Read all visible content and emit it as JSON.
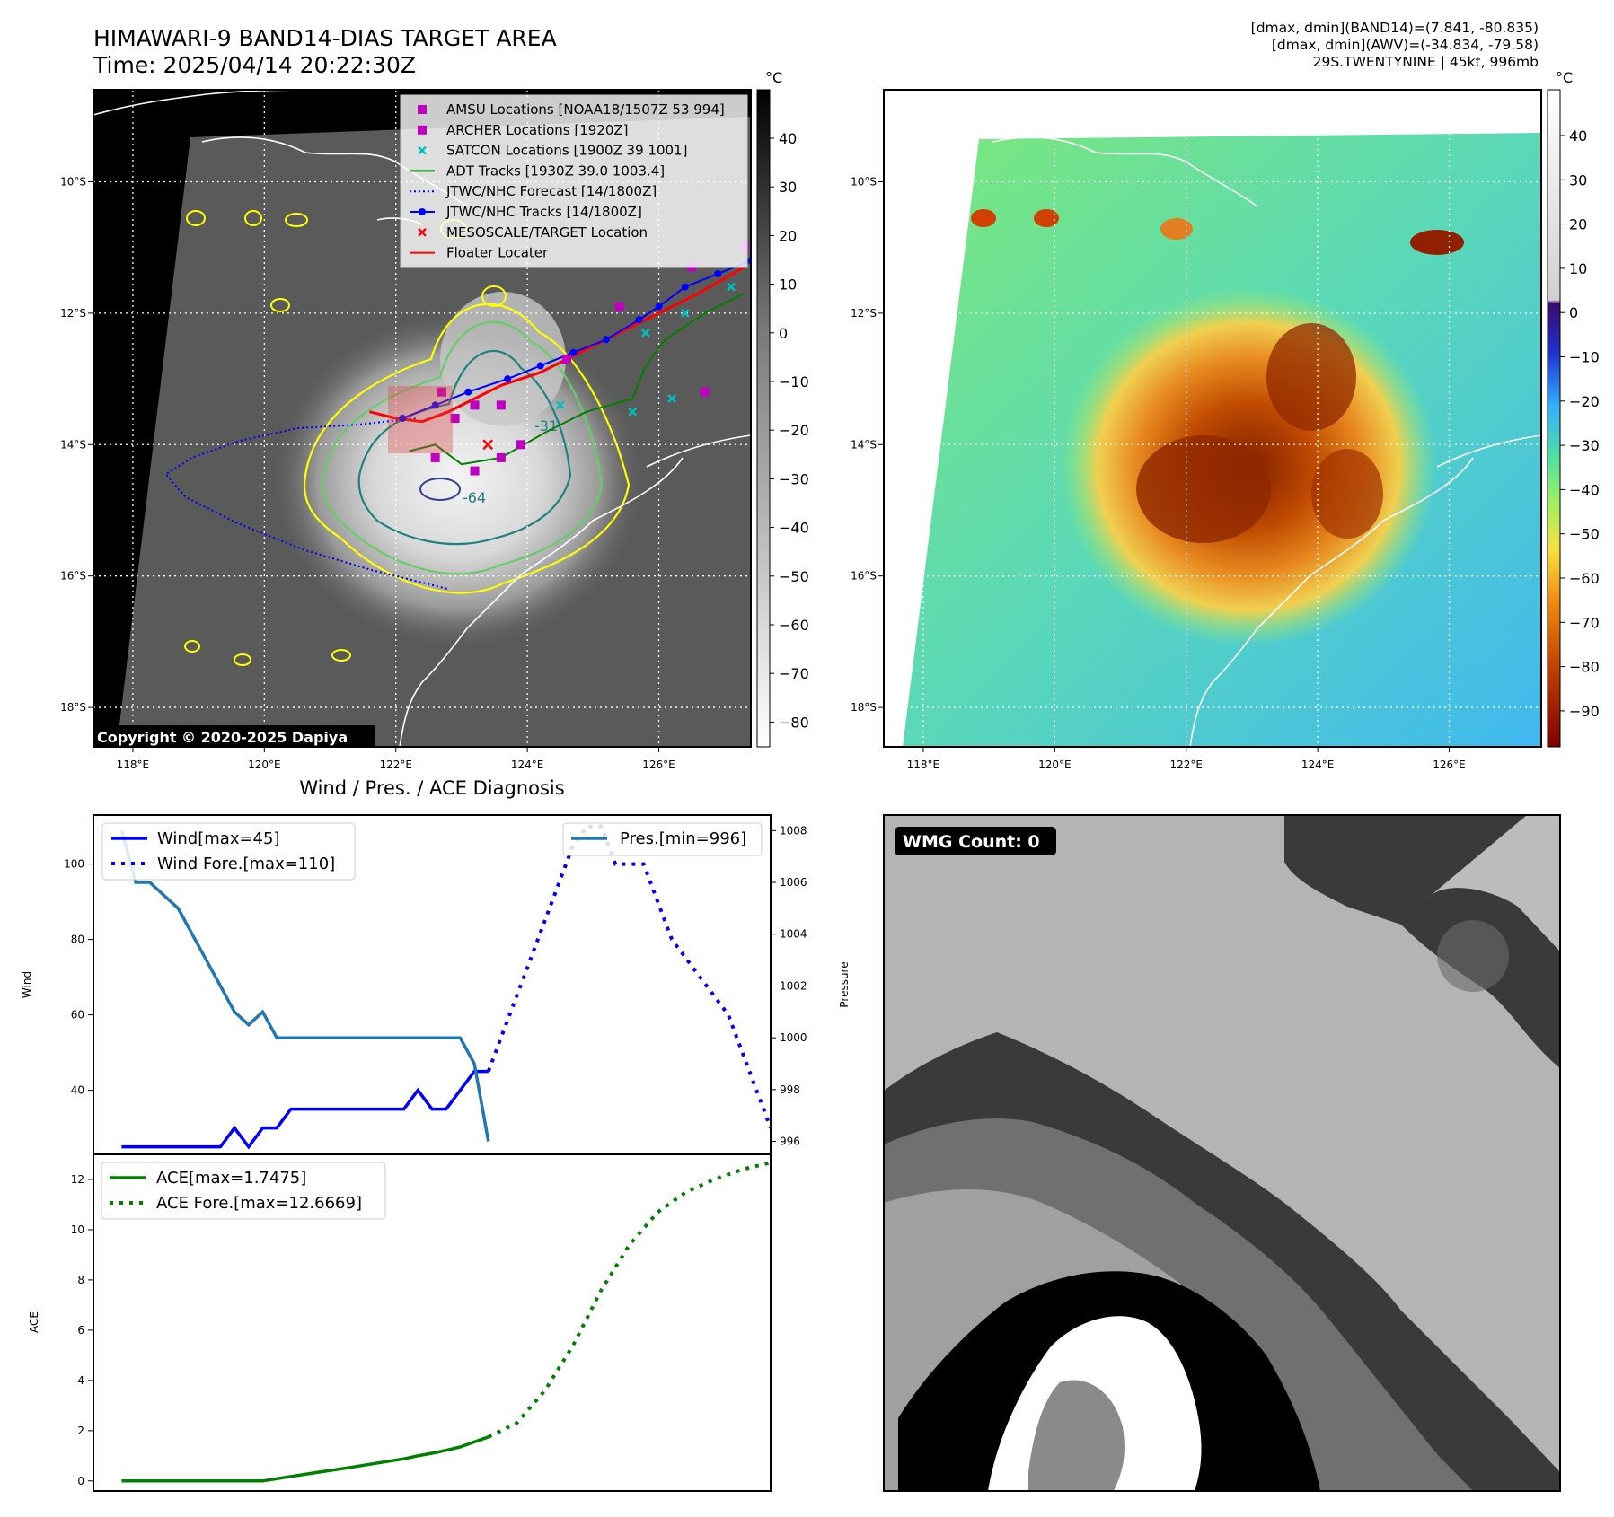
{
  "header": {
    "title_line1": "HIMAWARI-9 BAND14-DIAS TARGET AREA",
    "title_line2": "Time: 2025/04/14 20:22:30Z",
    "info_line1": "[dmax, dmin](BAND14)=(7.841, -80.835)",
    "info_line2": "[dmax, dmin](AWV)=(-34.834, -79.58)",
    "info_line3": "29S.TWENTYNINE | 45kt, 996mb"
  },
  "colors": {
    "wind": "#0000ff",
    "pressure": "#1f77b4",
    "ace": "#008000",
    "track_red": "#ff0000",
    "amsu": "#c000c0",
    "satcon": "#00c0c0",
    "contour_yellow": "#ffff00",
    "contour_green": "#66cc66",
    "contour_teal": "#208080"
  },
  "map_axes": {
    "lon_ticks": [
      "118°E",
      "120°E",
      "122°E",
      "124°E",
      "126°E"
    ],
    "lat_ticks": [
      "10°S",
      "12°S",
      "14°S",
      "16°S",
      "18°S"
    ],
    "lon_range": [
      117.4,
      127.4
    ],
    "lat_range": [
      -18.6,
      -8.6
    ]
  },
  "map_left": {
    "copyright": "Copyright © 2020-2025 Dapiya",
    "colorbar_unit": "°C",
    "colorbar_ticks": [
      "40",
      "30",
      "20",
      "10",
      "0",
      "−10",
      "−20",
      "−30",
      "−40",
      "−50",
      "−60",
      "−70",
      "−80"
    ],
    "contour_labels": [
      "-31",
      "-64"
    ],
    "legend": [
      {
        "label": "AMSU Locations [NOAA18/1507Z 53 994]",
        "marker": "square",
        "color": "#c000c0"
      },
      {
        "label": "ARCHER Locations [1920Z]",
        "marker": "square",
        "color": "#c000c0"
      },
      {
        "label": "SATCON Locations [1900Z 39 1001]",
        "marker": "x",
        "color": "#00c0c0"
      },
      {
        "label": "ADT Tracks [1930Z 39.0 1003.4]",
        "marker": "line",
        "color": "#008000"
      },
      {
        "label": "JTWC/NHC Forecast [14/1800Z]",
        "marker": "dotted",
        "color": "#0000ff"
      },
      {
        "label": "JTWC/NHC Tracks [14/1800Z]",
        "marker": "line-dot",
        "color": "#0000ff"
      },
      {
        "label": "MESOSCALE/TARGET Location",
        "marker": "x",
        "color": "#ff0000"
      },
      {
        "label": "Floater Locater",
        "marker": "line",
        "color": "#ff0000"
      }
    ],
    "tracks": {
      "jtwc_track": [
        [
          127.4,
          -11.2
        ],
        [
          126.9,
          -11.4
        ],
        [
          126.4,
          -11.6
        ],
        [
          126.0,
          -11.9
        ],
        [
          125.7,
          -12.1
        ],
        [
          125.2,
          -12.4
        ],
        [
          124.7,
          -12.6
        ],
        [
          124.2,
          -12.8
        ],
        [
          123.7,
          -13.0
        ],
        [
          123.1,
          -13.2
        ],
        [
          122.6,
          -13.4
        ],
        [
          122.1,
          -13.6
        ]
      ],
      "jtwc_forecast": [
        [
          122.3,
          -13.6
        ],
        [
          121.4,
          -13.7
        ],
        [
          120.5,
          -13.75
        ],
        [
          119.6,
          -13.95
        ],
        [
          118.9,
          -14.2
        ],
        [
          118.5,
          -14.45
        ],
        [
          118.8,
          -14.8
        ],
        [
          119.6,
          -15.2
        ],
        [
          120.6,
          -15.6
        ],
        [
          121.6,
          -15.9
        ],
        [
          122.4,
          -16.1
        ],
        [
          122.8,
          -16.2
        ]
      ],
      "floater": [
        [
          127.3,
          -11.3
        ],
        [
          126.6,
          -11.7
        ],
        [
          126.0,
          -12.0
        ],
        [
          125.4,
          -12.3
        ],
        [
          124.8,
          -12.6
        ],
        [
          124.2,
          -12.9
        ],
        [
          123.6,
          -13.1
        ],
        [
          123.2,
          -13.3
        ],
        [
          122.8,
          -13.5
        ],
        [
          122.4,
          -13.65
        ],
        [
          122.0,
          -13.6
        ],
        [
          121.6,
          -13.5
        ]
      ],
      "adt": [
        [
          127.3,
          -11.7
        ],
        [
          126.7,
          -12.0
        ],
        [
          126.1,
          -12.4
        ],
        [
          125.8,
          -12.8
        ],
        [
          125.6,
          -13.3
        ],
        [
          124.9,
          -13.5
        ],
        [
          124.3,
          -13.8
        ],
        [
          123.6,
          -14.2
        ],
        [
          123.0,
          -14.3
        ],
        [
          122.6,
          -14.0
        ],
        [
          122.2,
          -14.1
        ]
      ],
      "amsu": [
        [
          127.3,
          -11.0
        ],
        [
          126.5,
          -11.3
        ],
        [
          125.4,
          -11.9
        ],
        [
          124.6,
          -12.7
        ],
        [
          123.6,
          -13.4
        ],
        [
          123.2,
          -13.4
        ],
        [
          122.9,
          -13.6
        ],
        [
          122.7,
          -13.2
        ],
        [
          122.6,
          -14.2
        ],
        [
          123.2,
          -14.4
        ],
        [
          123.6,
          -14.2
        ],
        [
          123.9,
          -14.0
        ],
        [
          126.7,
          -13.2
        ]
      ],
      "satcon": [
        [
          127.1,
          -11.6
        ],
        [
          126.4,
          -12.0
        ],
        [
          125.8,
          -12.3
        ],
        [
          125.6,
          -13.5
        ],
        [
          126.2,
          -13.3
        ],
        [
          124.5,
          -13.4
        ]
      ],
      "target": [
        [
          123.4,
          -14.0
        ]
      ]
    }
  },
  "map_right": {
    "colorbar_unit": "°C",
    "colorbar_ticks": [
      "40",
      "30",
      "20",
      "10",
      "0",
      "−10",
      "−20",
      "−30",
      "−40",
      "−50",
      "−60",
      "−70",
      "−80",
      "−90"
    ]
  },
  "chart_data": [
    {
      "type": "line",
      "title": "Wind / Pres. / ACE Diagnosis",
      "ylabel": "Wind",
      "y2label": "Pressure",
      "ylim": [
        23,
        113
      ],
      "y2lim": [
        995.5,
        1008.6
      ],
      "xlim": [
        -2,
        46
      ],
      "yticks": [
        40,
        60,
        80,
        100
      ],
      "y2ticks": [
        996,
        998,
        1000,
        1002,
        1004,
        1006,
        1008
      ],
      "legend_left": [
        "Wind[max=45]",
        "Wind Fore.[max=110]"
      ],
      "legend_right": [
        "Pres.[min=996]"
      ],
      "series": [
        {
          "name": "Wind[max=45]",
          "axis": "left",
          "style": "solid",
          "x": [
            0,
            1,
            2,
            3,
            4,
            5,
            6,
            7,
            8,
            9,
            10,
            11,
            12,
            13,
            14,
            15,
            16,
            17,
            18,
            19,
            20,
            21,
            22,
            23,
            24,
            25,
            26
          ],
          "values": [
            25,
            25,
            25,
            25,
            25,
            25,
            25,
            25,
            30,
            25,
            30,
            30,
            35,
            35,
            35,
            35,
            35,
            35,
            35,
            35,
            35,
            40,
            35,
            35,
            40,
            45,
            45
          ]
        },
        {
          "name": "Wind Fore.[max=110]",
          "axis": "left",
          "style": "dotted",
          "x": [
            26,
            27,
            28,
            29,
            30,
            31,
            32,
            33,
            34,
            35,
            36,
            37,
            38,
            39,
            40,
            41,
            42,
            43,
            44,
            45,
            46
          ],
          "values": [
            45,
            55,
            65,
            75,
            85,
            95,
            105,
            110,
            110,
            100,
            100,
            100,
            90,
            80,
            75,
            70,
            65,
            60,
            50,
            40,
            30
          ]
        },
        {
          "name": "Pres.[min=996]",
          "axis": "right",
          "style": "solid",
          "x": [
            0,
            1,
            2,
            3,
            4,
            5,
            6,
            7,
            8,
            9,
            10,
            11,
            12,
            13,
            14,
            15,
            16,
            17,
            18,
            19,
            20,
            21,
            22,
            23,
            24,
            25,
            26
          ],
          "values": [
            1008,
            1006,
            1006,
            1005.5,
            1005,
            1004,
            1003,
            1002,
            1001,
            1000.5,
            1001,
            1000,
            1000,
            1000,
            1000,
            1000,
            1000,
            1000,
            1000,
            1000,
            1000,
            1000,
            1000,
            1000,
            1000,
            999,
            996
          ]
        }
      ]
    },
    {
      "type": "line",
      "ylabel": "ACE",
      "ylim": [
        -0.4,
        13.0
      ],
      "xlim": [
        -2,
        46
      ],
      "yticks": [
        0,
        2,
        4,
        6,
        8,
        10,
        12
      ],
      "legend": [
        "ACE[max=1.7475]",
        "ACE Fore.[max=12.6669]"
      ],
      "series": [
        {
          "name": "ACE[max=1.7475]",
          "style": "solid",
          "x": [
            0,
            2,
            4,
            6,
            8,
            10,
            12,
            14,
            16,
            18,
            20,
            21,
            22,
            23,
            24,
            25,
            26
          ],
          "values": [
            0,
            0,
            0,
            0,
            0,
            0,
            0.18,
            0.35,
            0.52,
            0.7,
            0.88,
            1.0,
            1.1,
            1.22,
            1.35,
            1.55,
            1.75
          ]
        },
        {
          "name": "ACE Fore.[max=12.6669]",
          "style": "dotted",
          "x": [
            26,
            28,
            30,
            32,
            34,
            36,
            38,
            40,
            42,
            44,
            46
          ],
          "values": [
            1.75,
            2.3,
            3.6,
            5.4,
            7.6,
            9.4,
            10.7,
            11.5,
            12.0,
            12.4,
            12.67
          ]
        }
      ]
    }
  ],
  "wmg": {
    "label": "WMG Count: 0"
  }
}
